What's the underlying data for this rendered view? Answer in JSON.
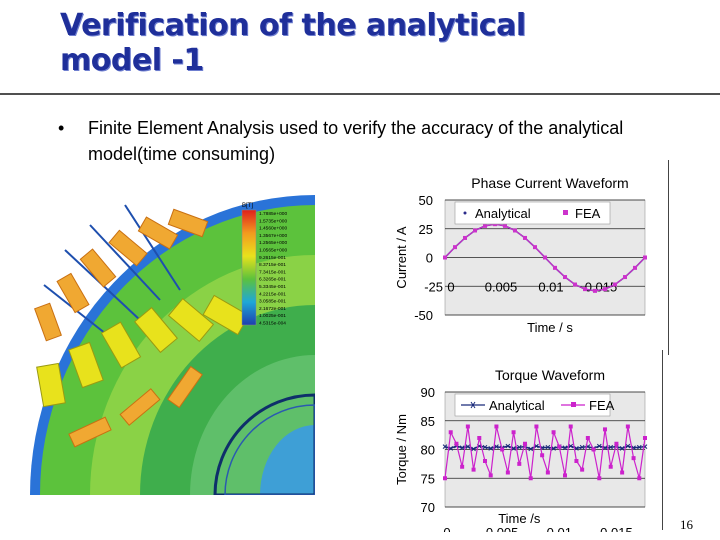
{
  "slide": {
    "title_line1": "Verification of the analytical",
    "title_line2": "model -1",
    "bullet_symbol": "•",
    "bullet_text": "Finite Element Analysis used to verify the accuracy of the analytical model(time consuming)",
    "slide_number": "16"
  },
  "fea_image": {
    "legend_title": "B[T]",
    "legend_values": [
      "1.7885e+000",
      "1.5735e+000",
      "1.4560e+000",
      "1.3567e+000",
      "1.2565e+000",
      "1.0565e+000",
      "9.2615e-001",
      "8.3715e-001",
      "7.3415e-001",
      "6.3265e-001",
      "5.3345e-001",
      "4.2215e-001",
      "3.0585e-001",
      "2.1672e-001",
      "1.0025e-001",
      "4.5315e-004"
    ],
    "colors": {
      "background": "#2a73d8",
      "stator": "#5cc23c",
      "magnet": "#f0a832",
      "highflux": "#e8e21c",
      "rotor": "#3fae4c",
      "air": "#1e4fae"
    }
  },
  "chart_data": [
    {
      "type": "line",
      "title": "Phase Current Waveform",
      "xlabel": "Time / s",
      "ylabel": "Current / A",
      "xlim": [
        0,
        0.02
      ],
      "ylim": [
        -50,
        50
      ],
      "x_tick_labels": [
        "0",
        "0.005",
        "0.01",
        "0.015"
      ],
      "y_tick_labels": [
        "50",
        "25",
        "0",
        "-25",
        "-50"
      ],
      "grid": true,
      "legend": "top",
      "series": [
        {
          "name": "Analytical",
          "color": "#2a2a8a",
          "marker": "dot",
          "x": [
            0,
            0.001,
            0.002,
            0.003,
            0.004,
            0.005,
            0.006,
            0.007,
            0.008,
            0.009,
            0.01,
            0.011,
            0.012,
            0.013,
            0.014,
            0.015,
            0.016,
            0.017,
            0.018,
            0.019,
            0.02
          ],
          "y": [
            0,
            9,
            17,
            23.5,
            27.5,
            29,
            27.5,
            23.5,
            17,
            9,
            0,
            -9,
            -17,
            -23.5,
            -27.5,
            -29,
            -27.5,
            -23.5,
            -17,
            -9,
            0
          ]
        },
        {
          "name": "FEA",
          "color": "#cc33cc",
          "marker": "square",
          "x": [
            0,
            0.001,
            0.002,
            0.003,
            0.004,
            0.005,
            0.006,
            0.007,
            0.008,
            0.009,
            0.01,
            0.011,
            0.012,
            0.013,
            0.014,
            0.015,
            0.016,
            0.017,
            0.018,
            0.019,
            0.02
          ],
          "y": [
            0,
            9,
            17,
            23.5,
            27.5,
            29,
            27.5,
            23.5,
            17,
            9,
            0,
            -9,
            -17,
            -23.5,
            -27.5,
            -29,
            -27.5,
            -23.5,
            -17,
            -9,
            0
          ]
        }
      ]
    },
    {
      "type": "line",
      "title": "Torque Waveform",
      "xlabel": "Time /s",
      "ylabel": "Torque / Nm",
      "xlim": [
        0,
        0.0175
      ],
      "ylim": [
        70,
        90
      ],
      "x_tick_labels": [
        "0",
        "0.005",
        "0.01",
        "0.015"
      ],
      "y_tick_labels": [
        "90",
        "85",
        "80",
        "75",
        "70"
      ],
      "grid": true,
      "legend": "top",
      "series": [
        {
          "name": "Analytical",
          "color": "#1a2a7a",
          "marker": "cross",
          "x": [
            0,
            0.0005,
            0.001,
            0.0015,
            0.002,
            0.0025,
            0.003,
            0.0035,
            0.004,
            0.0045,
            0.005,
            0.0055,
            0.006,
            0.0065,
            0.007,
            0.0075,
            0.008,
            0.0085,
            0.009,
            0.0095,
            0.01,
            0.0105,
            0.011,
            0.0115,
            0.012,
            0.0125,
            0.013,
            0.0135,
            0.014,
            0.0145,
            0.015,
            0.0155,
            0.016,
            0.0165,
            0.017,
            0.0175
          ],
          "y": [
            80.5,
            80.2,
            80.6,
            80.3,
            80.5,
            80.1,
            80.6,
            80.4,
            80.2,
            80.5,
            80.3,
            80.6,
            80.2,
            80.4,
            80.5,
            80.1,
            80.6,
            80.3,
            80.4,
            80.2,
            80.5,
            80.3,
            80.6,
            80.2,
            80.4,
            80.5,
            80.2,
            80.6,
            80.3,
            80.4,
            80.5,
            80.2,
            80.6,
            80.3,
            80.4,
            80.5
          ]
        },
        {
          "name": "FEA",
          "color": "#cc22cc",
          "marker": "square",
          "x": [
            0,
            0.0005,
            0.001,
            0.0015,
            0.002,
            0.0025,
            0.003,
            0.0035,
            0.004,
            0.0045,
            0.005,
            0.0055,
            0.006,
            0.0065,
            0.007,
            0.0075,
            0.008,
            0.0085,
            0.009,
            0.0095,
            0.01,
            0.0105,
            0.011,
            0.0115,
            0.012,
            0.0125,
            0.013,
            0.0135,
            0.014,
            0.0145,
            0.015,
            0.0155,
            0.016,
            0.0165,
            0.017,
            0.0175
          ],
          "y": [
            75,
            83,
            81,
            77,
            84,
            76.5,
            82,
            78,
            75.5,
            84,
            80,
            76,
            83,
            77.5,
            81,
            75,
            84,
            79,
            76,
            83,
            80.5,
            75.5,
            84,
            78,
            76.5,
            82,
            80,
            75,
            83.5,
            77,
            81,
            76,
            84,
            78.5,
            75,
            82
          ]
        }
      ]
    }
  ]
}
